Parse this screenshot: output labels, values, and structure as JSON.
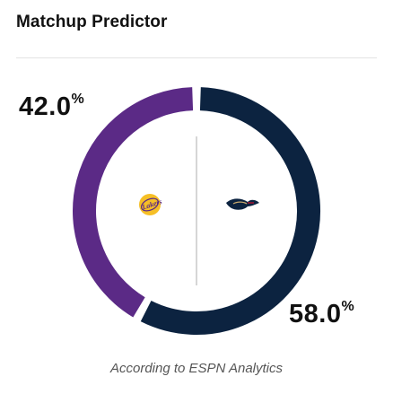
{
  "widget": {
    "title": "Matchup Predictor",
    "caption": "According to ESPN Analytics"
  },
  "teams": [
    {
      "logo": "lakers-logo",
      "logo_text": "Lakers",
      "win_probability": 42.0,
      "pct_text": "42.0",
      "pct_sign": "%",
      "color": "#5b2a86"
    },
    {
      "logo": "pelicans-logo",
      "win_probability": 58.0,
      "pct_text": "58.0",
      "pct_sign": "%",
      "color": "#0c2340"
    }
  ],
  "colors": {
    "background": "#ffffff",
    "divider": "#c8c8c8",
    "gold": "#f0b100"
  }
}
